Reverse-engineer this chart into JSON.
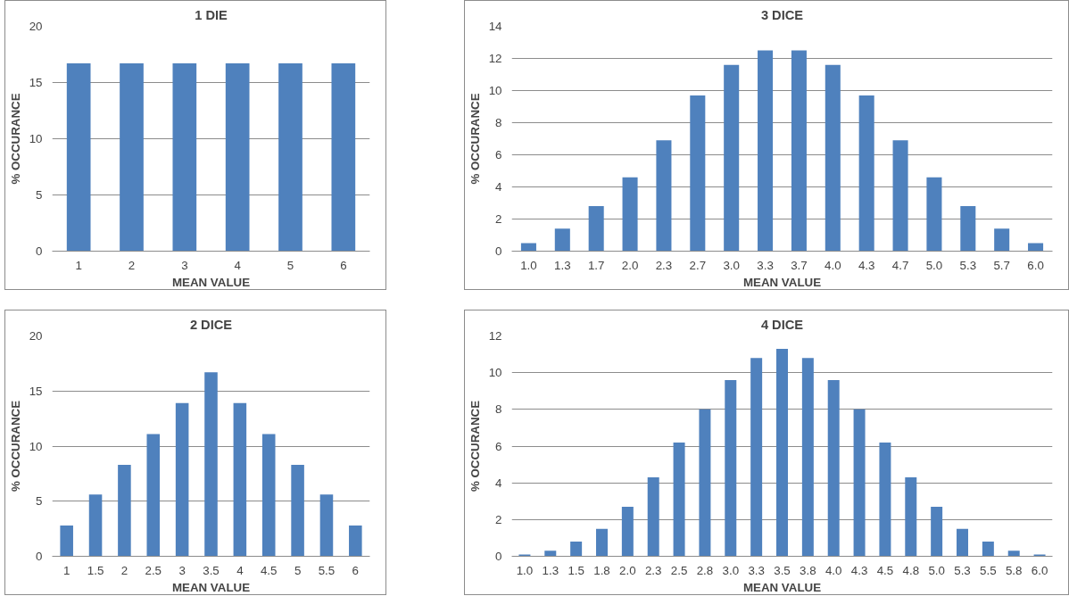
{
  "chart_data": [
    {
      "type": "bar",
      "title": "1 DIE",
      "xlabel": "MEAN VALUE",
      "ylabel": "% OCCURANCE",
      "categories": [
        "1",
        "2",
        "3",
        "4",
        "5",
        "6"
      ],
      "values": [
        16.7,
        16.7,
        16.7,
        16.7,
        16.7,
        16.7
      ],
      "color": "#4f81bd",
      "ylim": [
        0,
        20
      ],
      "yticks": [
        0,
        5,
        10,
        15,
        20
      ],
      "grid": "y",
      "legend": false
    },
    {
      "type": "bar",
      "title": "3 DICE",
      "xlabel": "MEAN VALUE",
      "ylabel": "% OCCURANCE",
      "categories": [
        "1.0",
        "1.3",
        "1.7",
        "2.0",
        "2.3",
        "2.7",
        "3.0",
        "3.3",
        "3.7",
        "4.0",
        "4.3",
        "4.7",
        "5.0",
        "5.3",
        "5.7",
        "6.0"
      ],
      "values": [
        0.5,
        1.4,
        2.8,
        4.6,
        6.9,
        9.7,
        11.6,
        12.5,
        12.5,
        11.6,
        9.7,
        6.9,
        4.6,
        2.8,
        1.4,
        0.5
      ],
      "color": "#4f81bd",
      "ylim": [
        0,
        14
      ],
      "yticks": [
        0,
        2,
        4,
        6,
        8,
        10,
        12,
        14
      ],
      "grid": "y",
      "legend": false
    },
    {
      "type": "bar",
      "title": "2 DICE",
      "xlabel": "MEAN VALUE",
      "ylabel": "% OCCURANCE",
      "categories": [
        "1",
        "1.5",
        "2",
        "2.5",
        "3",
        "3.5",
        "4",
        "4.5",
        "5",
        "5.5",
        "6"
      ],
      "values": [
        2.8,
        5.6,
        8.3,
        11.1,
        13.9,
        16.7,
        13.9,
        11.1,
        8.3,
        5.6,
        2.8
      ],
      "color": "#4f81bd",
      "ylim": [
        0,
        20
      ],
      "yticks": [
        0,
        5,
        10,
        15,
        20
      ],
      "grid": "y",
      "legend": false
    },
    {
      "type": "bar",
      "title": "4 DICE",
      "xlabel": "MEAN VALUE",
      "ylabel": "% OCCURANCE",
      "categories": [
        "1.0",
        "1.3",
        "1.5",
        "1.8",
        "2.0",
        "2.3",
        "2.5",
        "2.8",
        "3.0",
        "3.3",
        "3.5",
        "3.8",
        "4.0",
        "4.3",
        "4.5",
        "4.8",
        "5.0",
        "5.3",
        "5.5",
        "5.8",
        "6.0"
      ],
      "values": [
        0.1,
        0.3,
        0.8,
        1.5,
        2.7,
        4.3,
        6.2,
        8.0,
        9.6,
        10.8,
        11.3,
        10.8,
        9.6,
        8.0,
        6.2,
        4.3,
        2.7,
        1.5,
        0.8,
        0.3,
        0.1
      ],
      "color": "#4f81bd",
      "ylim": [
        0,
        12
      ],
      "yticks": [
        0,
        2,
        4,
        6,
        8,
        10,
        12
      ],
      "grid": "y",
      "legend": false
    }
  ]
}
